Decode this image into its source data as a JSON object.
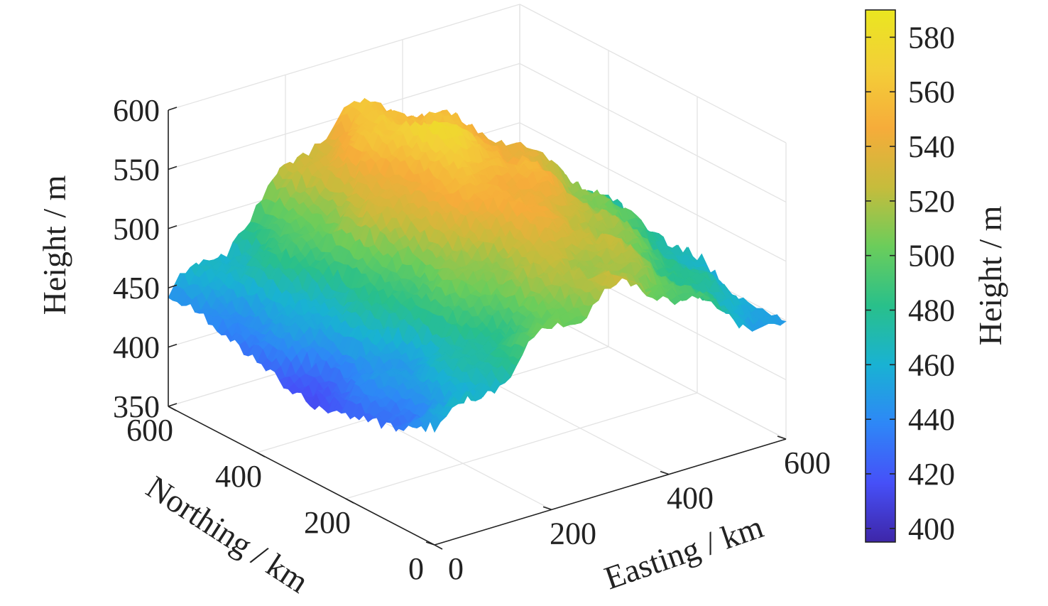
{
  "chart_data": {
    "type": "surface",
    "title": "",
    "xlabel": "Easting / km",
    "ylabel": "Northing / km",
    "zlabel": "Height / m",
    "colorbar_label": "Height / m",
    "xlim": [
      0,
      600
    ],
    "ylim": [
      0,
      600
    ],
    "zlim": [
      350,
      600
    ],
    "x_ticks": [
      "0",
      "200",
      "400",
      "600"
    ],
    "y_ticks": [
      "0",
      "200",
      "400",
      "600"
    ],
    "z_ticks": [
      "350",
      "400",
      "450",
      "500",
      "550",
      "600"
    ],
    "colorbar_range": [
      395,
      590
    ],
    "colorbar_ticks": [
      "400",
      "420",
      "440",
      "460",
      "480",
      "500",
      "520",
      "540",
      "560",
      "580"
    ],
    "colormap": [
      "#3e26a8",
      "#4650f8",
      "#2e87f7",
      "#19b2d3",
      "#29c08a",
      "#6bcd5b",
      "#c6bc3c",
      "#f6ac3a",
      "#f3cf38",
      "#eae620"
    ],
    "grid": true,
    "surface_profile": {
      "description_grid_eastings": [
        0,
        100,
        200,
        300,
        400,
        500,
        600
      ],
      "description_grid_northings": [
        0,
        100,
        200,
        300,
        400,
        500,
        600
      ],
      "heights": [
        [
          450,
          470,
          500,
          520,
          505,
          470,
          445
        ],
        [
          430,
          460,
          495,
          525,
          515,
          480,
          450
        ],
        [
          420,
          455,
          505,
          540,
          530,
          495,
          460
        ],
        [
          415,
          460,
          520,
          560,
          545,
          510,
          465
        ],
        [
          425,
          470,
          530,
          575,
          555,
          515,
          470
        ],
        [
          440,
          475,
          530,
          570,
          550,
          505,
          455
        ],
        [
          445,
          470,
          520,
          555,
          535,
          490,
          440
        ]
      ]
    }
  }
}
